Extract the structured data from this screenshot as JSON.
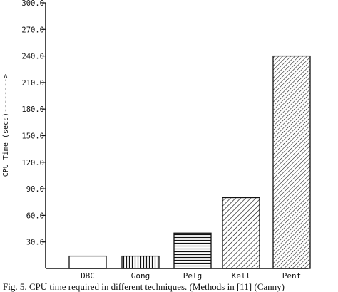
{
  "chart_data": {
    "type": "bar",
    "title": "",
    "ylabel": "CPU Time (secs)-------->",
    "xlabel": "",
    "ylim": [
      0,
      300
    ],
    "yticks": [
      "30.0",
      "60.0",
      "90.0",
      "120.0",
      "150.0",
      "180.0",
      "210.0",
      "240.0",
      "270.0",
      "300.0"
    ],
    "ytick_values": [
      30,
      60,
      90,
      120,
      150,
      180,
      210,
      240,
      270,
      300
    ],
    "categories": [
      "DBC",
      "Gong",
      "Pelg",
      "Kell",
      "Pent"
    ],
    "values": [
      14,
      14,
      40,
      80,
      240
    ],
    "patterns": [
      "none",
      "vertical",
      "horizontal",
      "diagonal-sparse",
      "diagonal-dense"
    ],
    "grid": false
  },
  "caption": "Fig. 5. CPU time required in different techniques. (Methods in [11] (Canny)"
}
